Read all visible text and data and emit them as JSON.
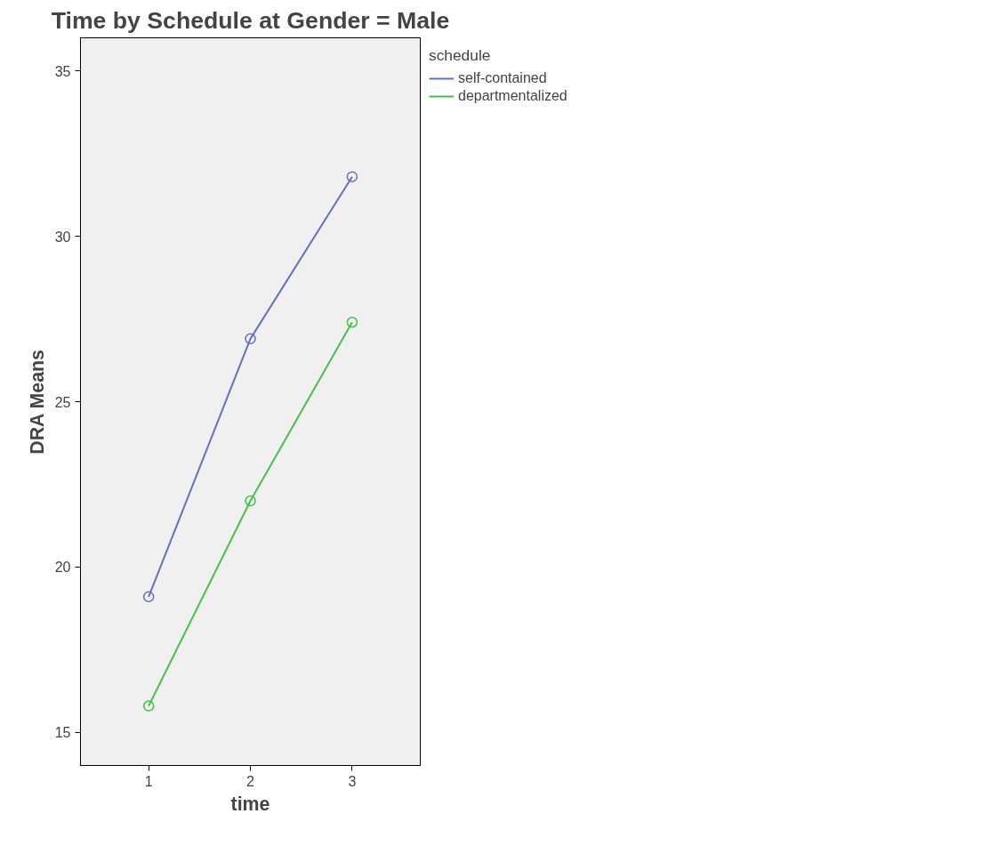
{
  "chart_data": {
    "type": "line",
    "title": "Time by Schedule at Gender = Male",
    "xlabel": "time",
    "ylabel": "DRA Means",
    "legend_title": "schedule",
    "x": [
      1,
      2,
      3
    ],
    "series": [
      {
        "name": "self-contained",
        "color": "#6271c1",
        "values": [
          19.1,
          26.9,
          31.8
        ]
      },
      {
        "name": "departmentalized",
        "color": "#43c24a",
        "values": [
          15.8,
          22.0,
          27.4
        ]
      }
    ],
    "xlim": [
      0.33,
      3.67
    ],
    "ylim": [
      14,
      36
    ],
    "xticks": [
      1,
      2,
      3
    ],
    "yticks": [
      15,
      20,
      25,
      30,
      35
    ],
    "grid": false,
    "legend": "top right",
    "marker": "circle",
    "line_style": "solid"
  }
}
